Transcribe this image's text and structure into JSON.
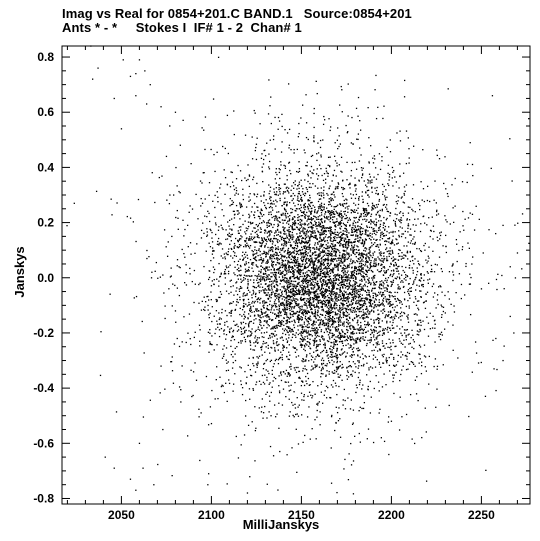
{
  "header": {
    "line1": "Imag vs Real for 0854+201.C BAND.1   Source:0854+201",
    "line2": "Ants * - *     Stokes I  IF# 1 - 2  Chan# 1"
  },
  "chart_data": {
    "type": "scatter",
    "title": "Imag vs Real for 0854+201.C BAND.1   Source:0854+201",
    "subtitle": "Ants * - *     Stokes I  IF# 1 - 2  Chan# 1",
    "xlabel": "MilliJanskys",
    "ylabel": "Janskys",
    "xlim": [
      2017,
      2277
    ],
    "ylim": [
      -0.82,
      0.84
    ],
    "xticks": [
      2050,
      2100,
      2150,
      2200,
      2250
    ],
    "yticks": [
      -0.8,
      -0.6,
      -0.4,
      -0.2,
      0.0,
      0.2,
      0.4,
      0.6,
      0.8
    ],
    "ytick_labels": [
      "-0.8",
      "-0.6",
      "-0.4",
      "-0.2",
      "0.0",
      "0.2",
      "0.4",
      "0.6",
      "0.8"
    ],
    "grid": false,
    "marker_color": "#000000",
    "cloud": {
      "n_points": 7000,
      "x_center": 2160,
      "y_center": 0.0,
      "x_spread": 27,
      "y_spread": 0.18
    },
    "outlier_points": [
      [
        2033,
        0.84
      ],
      [
        2037,
        0.76
      ],
      [
        2034,
        0.72
      ],
      [
        2046,
        0.65
      ],
      [
        2055,
        0.73
      ],
      [
        2058,
        0.74
      ],
      [
        2060,
        0.79
      ],
      [
        2063,
        0.75
      ],
      [
        2051,
        0.79
      ],
      [
        2058,
        0.66
      ],
      [
        2064,
        0.63
      ],
      [
        2072,
        0.62
      ],
      [
        2066,
        0.7
      ],
      [
        2050,
        0.54
      ],
      [
        2080,
        0.6
      ],
      [
        2075,
        0.44
      ],
      [
        2079,
        0.3
      ],
      [
        2078,
        0.15
      ],
      [
        2073,
        0.01
      ],
      [
        2076,
        0.13
      ],
      [
        2082,
        0.04
      ],
      [
        2080,
        -0.12
      ],
      [
        2081,
        -0.22
      ],
      [
        2072,
        -0.32
      ],
      [
        2083,
        -0.45
      ],
      [
        2073,
        -0.55
      ],
      [
        2060,
        -0.6
      ],
      [
        2062,
        -0.69
      ],
      [
        2055,
        -0.73
      ],
      [
        2041,
        -0.65
      ],
      [
        2046,
        -0.69
      ],
      [
        2068,
        -0.75
      ],
      [
        2058,
        -0.77
      ],
      [
        2098,
        -0.75
      ],
      [
        2120,
        -0.78
      ],
      [
        2262,
        -0.3
      ],
      [
        2258,
        -0.22
      ],
      [
        2266,
        -0.14
      ],
      [
        2254,
        -0.02
      ],
      [
        2251,
        0.09
      ],
      [
        2262,
        0.19
      ],
      [
        2266,
        0.04
      ],
      [
        2245,
        0.23
      ],
      [
        2250,
        -0.04
      ],
      [
        2270,
        0.09
      ],
      [
        2268,
        -0.2
      ],
      [
        2257,
        -0.33
      ]
    ]
  }
}
